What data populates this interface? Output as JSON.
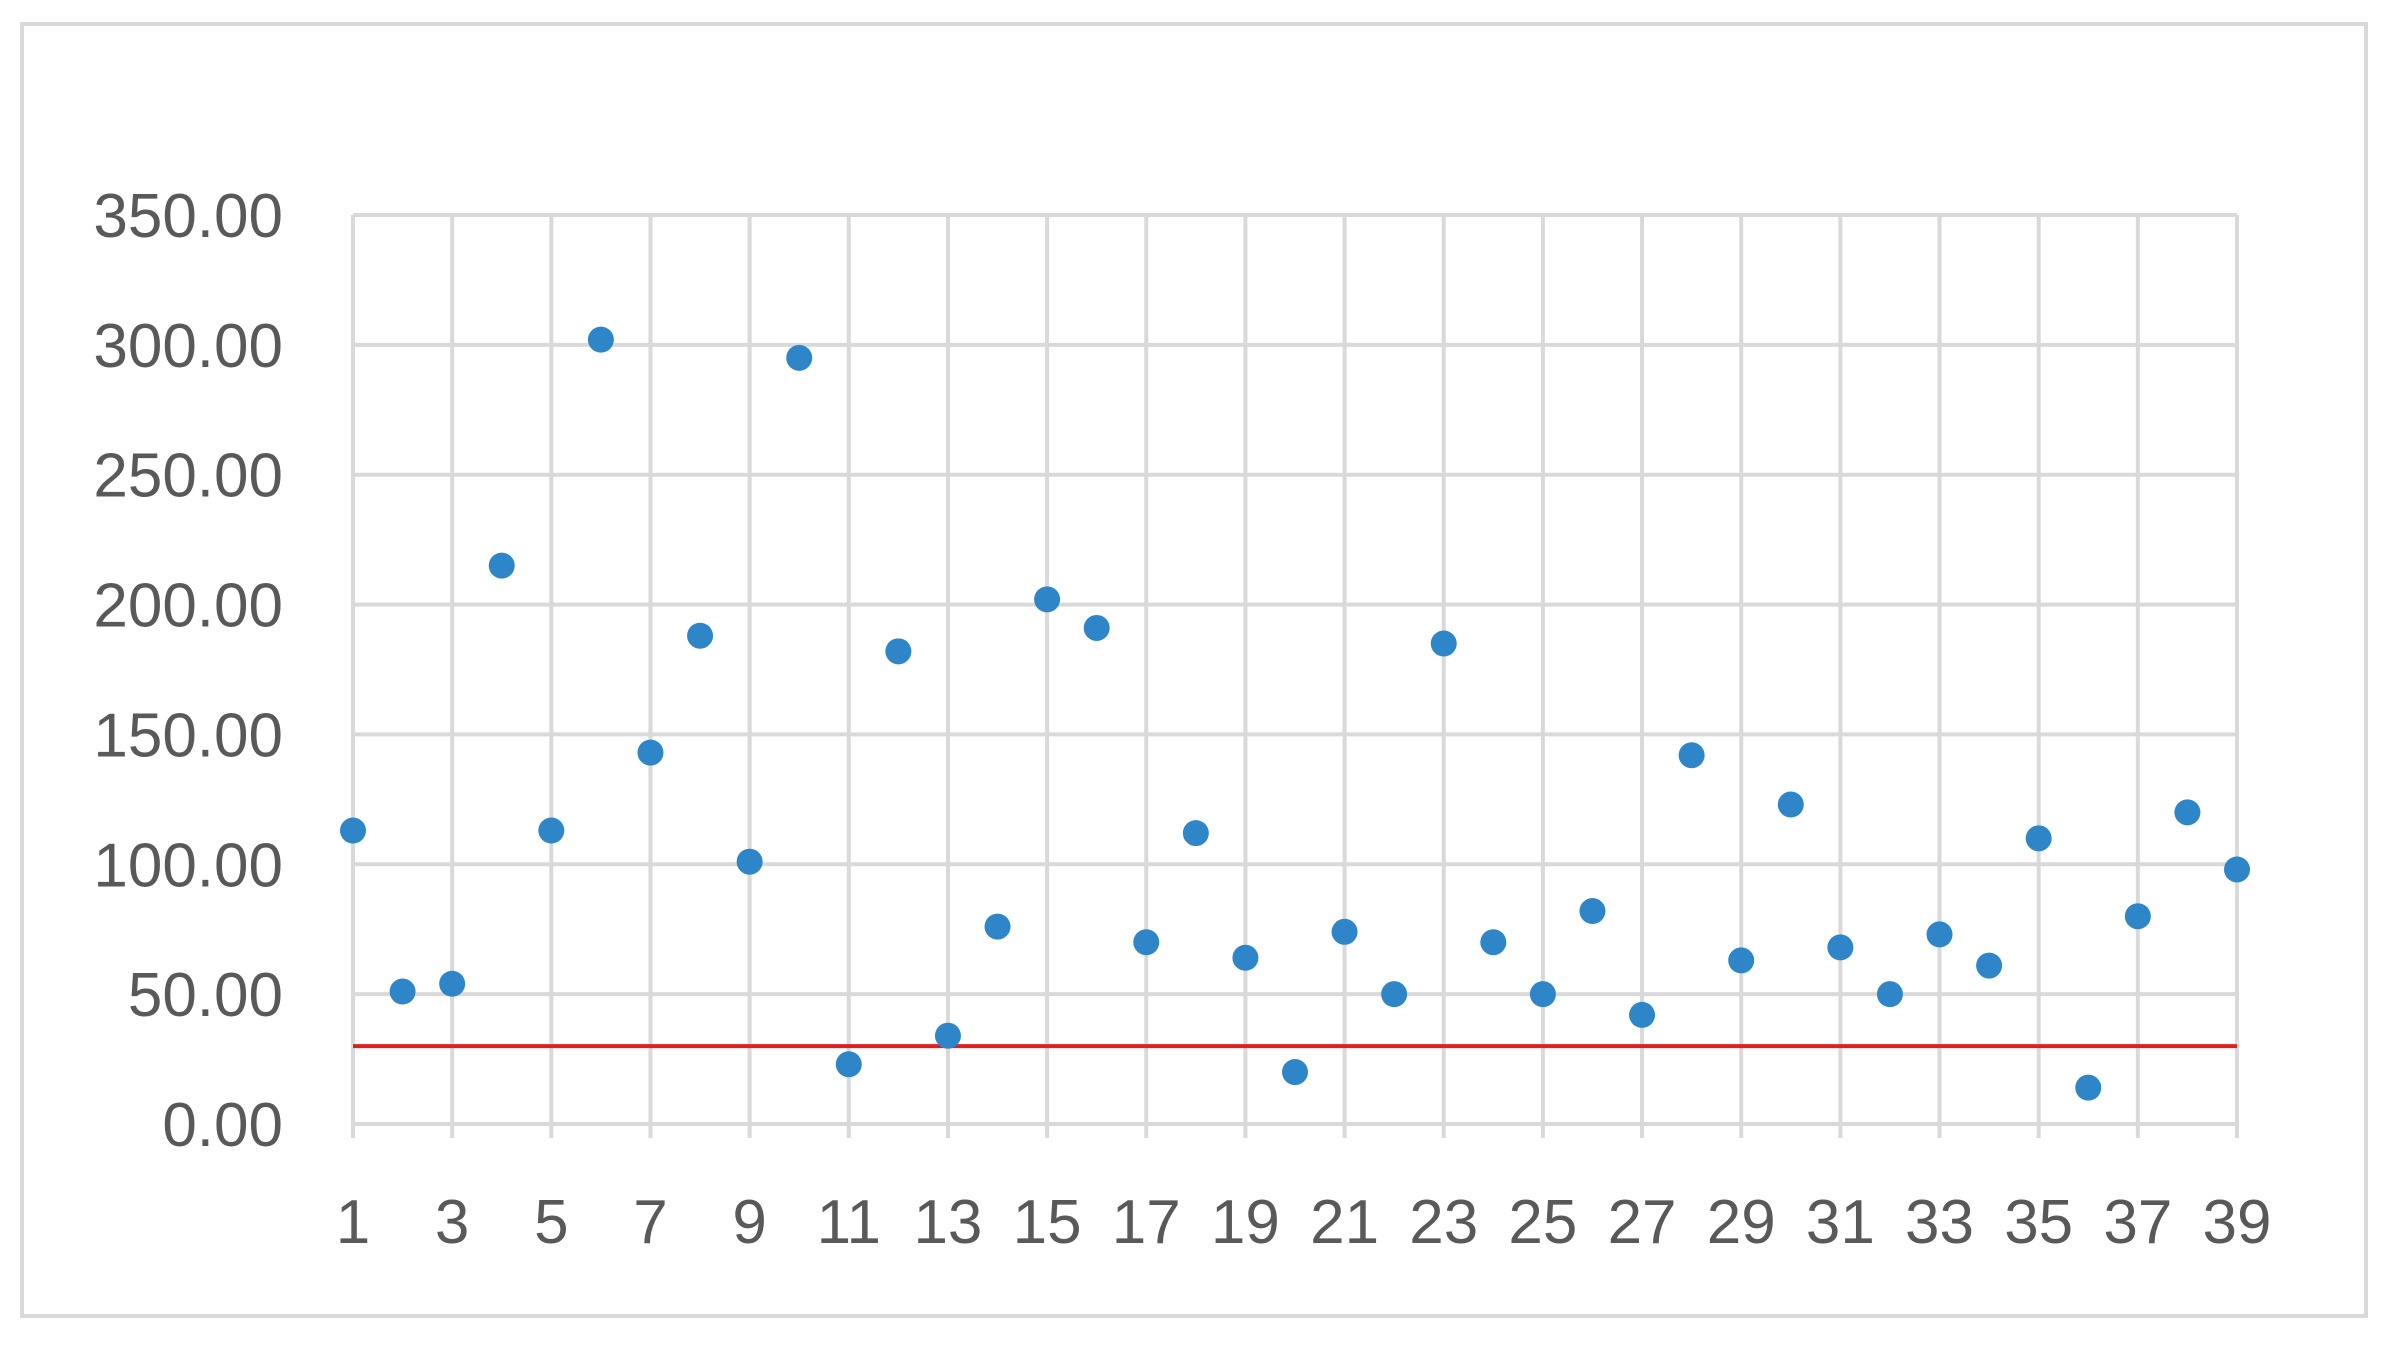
{
  "chart_data": {
    "type": "scatter",
    "title": "",
    "xlabel": "",
    "ylabel": "",
    "x": [
      1,
      2,
      3,
      4,
      5,
      6,
      7,
      8,
      9,
      10,
      11,
      12,
      13,
      14,
      15,
      16,
      17,
      18,
      19,
      20,
      21,
      22,
      23,
      24,
      25,
      26,
      27,
      28,
      29,
      30,
      31,
      32,
      33,
      34,
      35,
      36,
      37,
      38,
      39
    ],
    "series": [
      {
        "values": [
          113,
          51,
          54,
          215,
          113,
          302,
          143,
          188,
          101,
          295,
          23,
          182,
          34,
          76,
          202,
          191,
          70,
          112,
          64,
          20,
          74,
          50,
          185,
          70,
          50,
          82,
          42,
          142,
          63,
          123,
          68,
          50,
          73,
          61,
          110,
          14,
          80,
          120,
          98
        ],
        "color": "#2e86c8"
      }
    ],
    "xlim": [
      1,
      39
    ],
    "ylim": [
      0,
      350
    ],
    "y_ticks": [
      "0.00",
      "50.00",
      "100.00",
      "150.00",
      "200.00",
      "250.00",
      "300.00",
      "350.00"
    ],
    "x_ticks": [
      "1",
      "3",
      "5",
      "7",
      "9",
      "11",
      "13",
      "15",
      "17",
      "19",
      "21",
      "23",
      "25",
      "27",
      "29",
      "31",
      "33",
      "35",
      "37",
      "39"
    ],
    "grid": true,
    "reference_line": {
      "y": 30,
      "color": "#e02020"
    },
    "colors": {
      "grid": "#d9d9d9",
      "axis_text": "#595959",
      "border": "#d9d9d9"
    }
  }
}
